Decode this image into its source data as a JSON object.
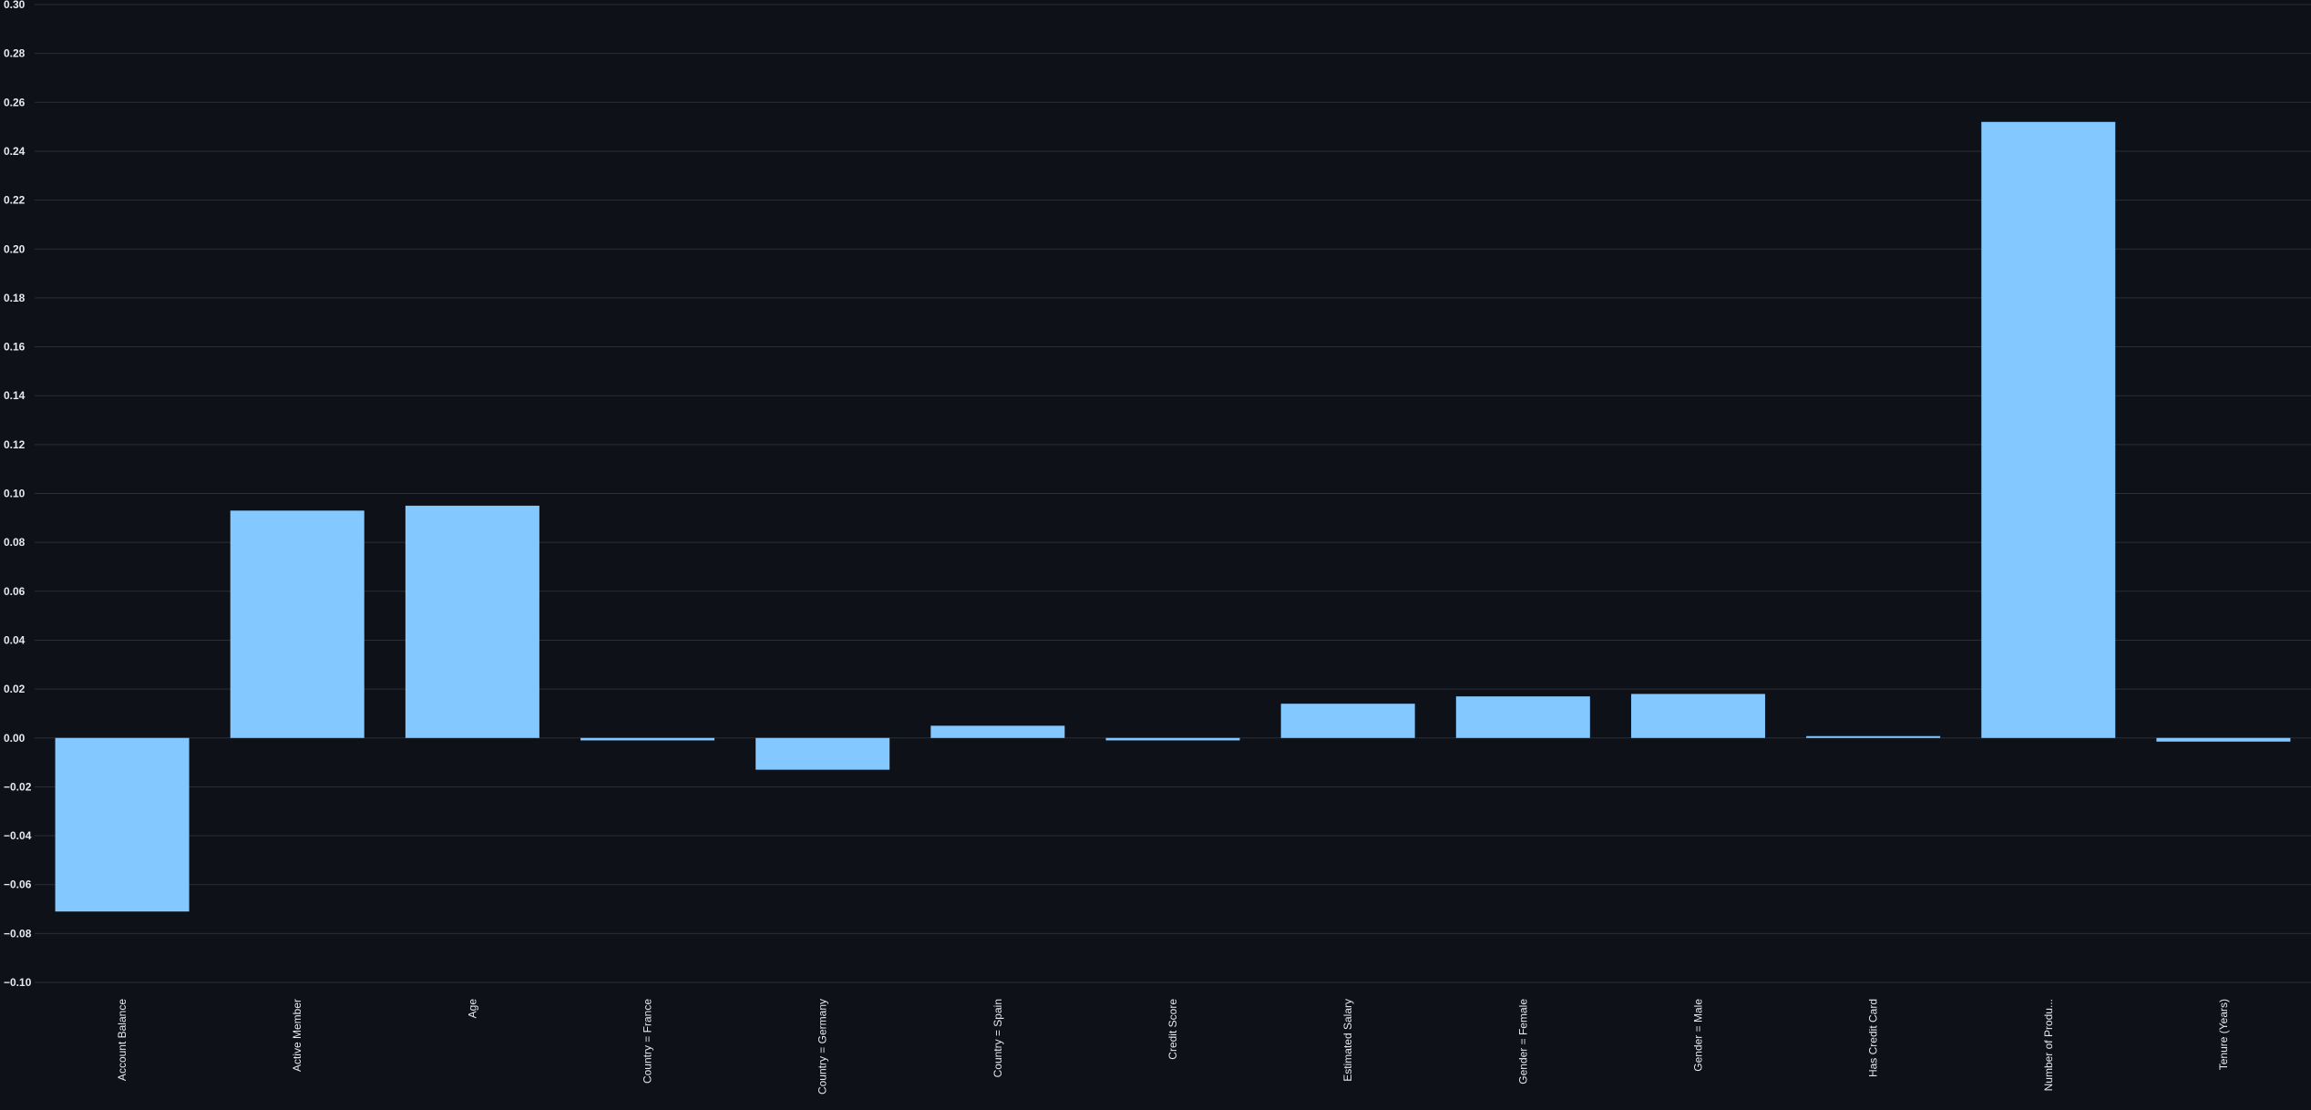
{
  "colors": {
    "background": "#0e1117",
    "bar": "#83c9ff",
    "grid": "#2a2e37",
    "text": "#e6e9ef"
  },
  "chart_data": {
    "type": "bar",
    "title": "",
    "xlabel": "",
    "ylabel": "",
    "ylim": [
      -0.1,
      0.3
    ],
    "y_tick_step": 0.02,
    "grid": true,
    "categories": [
      "Account Balance",
      "Active Member",
      "Age",
      "Country = France",
      "Country = Germany",
      "Country = Spain",
      "Credit Score",
      "Estimated Salary",
      "Gender = Female",
      "Gender = Male",
      "Has Credit Card",
      "Number of Produ...",
      "Tenure (Years)"
    ],
    "values": [
      -0.071,
      0.093,
      0.095,
      -0.001,
      -0.013,
      0.005,
      -0.001,
      0.014,
      0.017,
      0.018,
      0.0002,
      0.252,
      -0.0015
    ]
  }
}
